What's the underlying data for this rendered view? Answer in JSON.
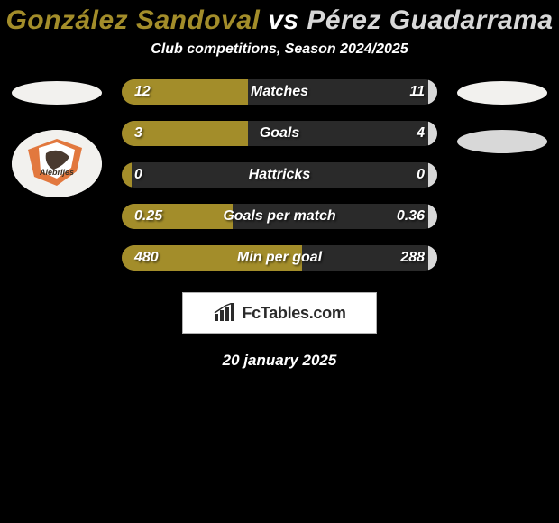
{
  "title": {
    "left_name": "González Sandoval",
    "vs": "vs",
    "right_name": "Pérez Guadarrama",
    "left_color": "#a38d2a",
    "right_color": "#d8d8d8"
  },
  "subtitle": "Club competitions, Season 2024/2025",
  "left_player": {
    "headshot_bg": "#f2f1ee",
    "club_badge_bg": "#f2f1ee",
    "club_badge_label": "Alebrijes",
    "club_badge_accent": "#e06a2a"
  },
  "right_player": {
    "headshot_bg": "#f2f1ee",
    "club_badge_bg": "#d8d8d8"
  },
  "chart": {
    "track_color": "#2a2a2a",
    "left_fill_color": "#a38d2a",
    "right_fill_color": "#d8d8d8",
    "bars": [
      {
        "label": "Matches",
        "left_value": "12",
        "right_value": "11",
        "left_width_pct": 40,
        "right_width_pct": 3
      },
      {
        "label": "Goals",
        "left_value": "3",
        "right_value": "4",
        "left_width_pct": 40,
        "right_width_pct": 3
      },
      {
        "label": "Hattricks",
        "left_value": "0",
        "right_value": "0",
        "left_width_pct": 3,
        "right_width_pct": 3
      },
      {
        "label": "Goals per match",
        "left_value": "0.25",
        "right_value": "0.36",
        "left_width_pct": 35,
        "right_width_pct": 3
      },
      {
        "label": "Min per goal",
        "left_value": "480",
        "right_value": "288",
        "left_width_pct": 57,
        "right_width_pct": 3
      }
    ]
  },
  "brand": {
    "icon": "bars-icon",
    "text": "FcTables.com"
  },
  "date": "20 january 2025"
}
